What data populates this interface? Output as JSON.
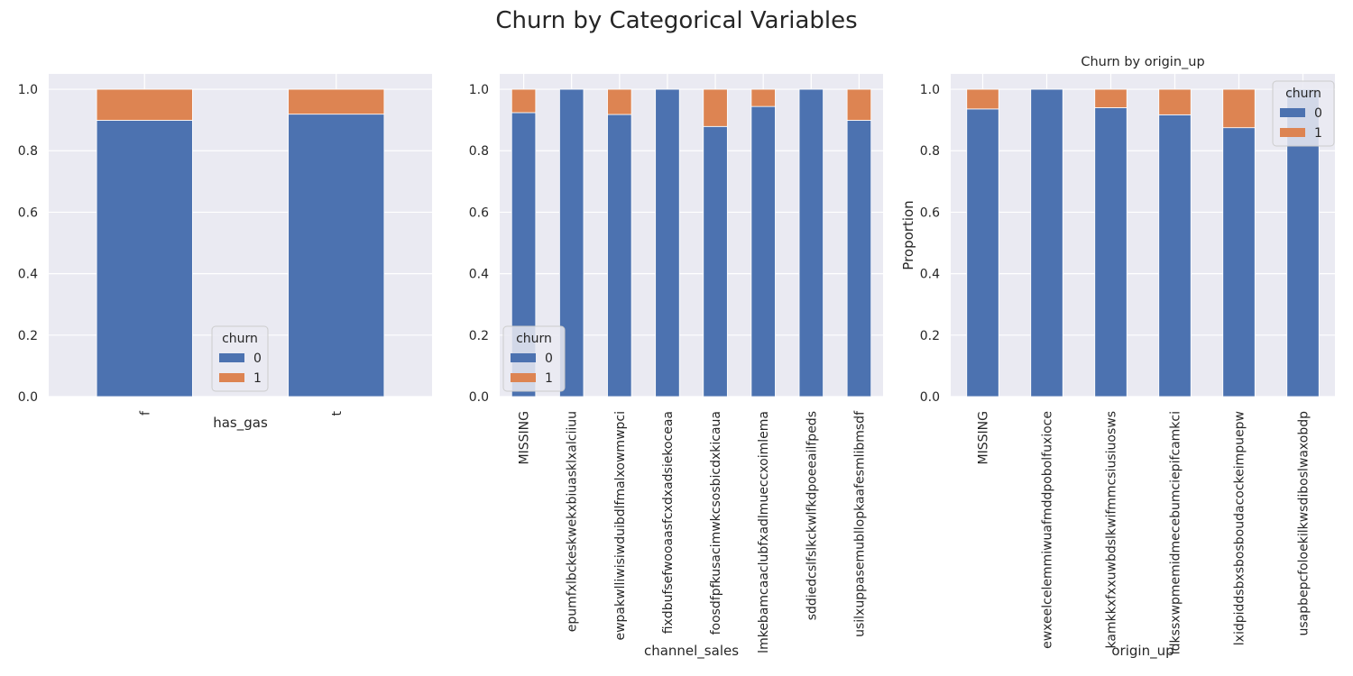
{
  "figure": {
    "title": "Churn by Categorical Variables"
  },
  "colors": {
    "background": "#eaeaf2",
    "grid": "#ffffff",
    "churn_0": "#4c72b0",
    "churn_1": "#dd8452"
  },
  "chart_data": [
    {
      "type": "bar",
      "stacked": true,
      "title": "",
      "xlabel": "has_gas",
      "ylabel": "",
      "ylim": [
        0,
        1.05
      ],
      "yticks": [
        "0.0",
        "0.2",
        "0.4",
        "0.6",
        "0.8",
        "1.0"
      ],
      "categories": [
        "f",
        "t"
      ],
      "series": [
        {
          "name": "0",
          "values": [
            0.899,
            0.919
          ]
        },
        {
          "name": "1",
          "values": [
            0.101,
            0.081
          ]
        }
      ],
      "legend": {
        "title": "churn",
        "placement": "lower-center"
      },
      "grid": true
    },
    {
      "type": "bar",
      "stacked": true,
      "title": "",
      "xlabel": "channel_sales",
      "ylabel": "",
      "ylim": [
        0,
        1.05
      ],
      "yticks": [
        "0.0",
        "0.2",
        "0.4",
        "0.6",
        "0.8",
        "1.0"
      ],
      "categories": [
        "MISSING",
        "epumfxlbckeskwekxbiuasklxalciiuu",
        "ewpakwlliwisiwduibdlfmalxowmwpci",
        "fixdbufsefwooaasfcxdxadsiekoceaa",
        "foosdfpfkusacimwkcsosbicdxkicaua",
        "lmkebamcaaclubfxadlmueccxoimlema",
        "sddiedcslfslkckwlfkdpoeeailfpeds",
        "usilxuppasemubllopkaafesmlibmsdf"
      ],
      "series": [
        {
          "name": "0",
          "values": [
            0.924,
            1.0,
            0.918,
            1.0,
            0.879,
            0.944,
            1.0,
            0.899
          ]
        },
        {
          "name": "1",
          "values": [
            0.076,
            0.0,
            0.082,
            0.0,
            0.121,
            0.056,
            0.0,
            0.101
          ]
        }
      ],
      "legend": {
        "title": "churn",
        "placement": "lower-left"
      },
      "grid": true
    },
    {
      "type": "bar",
      "stacked": true,
      "title": "Churn by origin_up",
      "xlabel": "origin_up",
      "ylabel": "Proportion",
      "ylim": [
        0,
        1.05
      ],
      "yticks": [
        "0.0",
        "0.2",
        "0.4",
        "0.6",
        "0.8",
        "1.0"
      ],
      "categories": [
        "MISSING",
        "ewxeelcelemmiwuafmddpobolfuxioce",
        "kamkkxfxxuwbdslkwifmmcsiusiuosws",
        "ldkssxwpmemidmecebumciepifcamkci",
        "lxidpiddsbxsbosboudacockeimpuepw",
        "usapbepcfoloekilkwsdiboslwaxobdp"
      ],
      "series": [
        {
          "name": "0",
          "values": [
            0.936,
            1.0,
            0.94,
            0.917,
            0.875,
            1.0
          ]
        },
        {
          "name": "1",
          "values": [
            0.064,
            0.0,
            0.06,
            0.083,
            0.125,
            0.0
          ]
        }
      ],
      "legend": {
        "title": "churn",
        "placement": "upper-right"
      },
      "grid": true
    }
  ]
}
